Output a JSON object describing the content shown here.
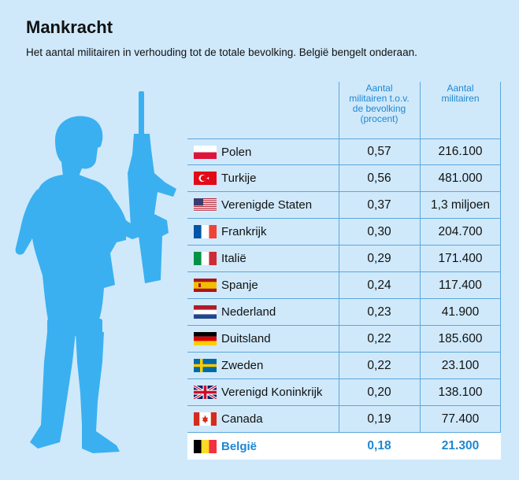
{
  "header": {
    "title": "Mankracht",
    "subtitle": "Het aantal militairen in verhouding tot de totale bevolking. België bengelt onderaan."
  },
  "chart_data": {
    "type": "table",
    "columns": [
      "",
      "Aantal militairen t.o.v. de bevolking (procent)",
      "Aantal militairen"
    ],
    "col_headers": {
      "percent_lines": [
        "Aantal",
        "militairen t.o.v.",
        "de bevolking",
        "(procent)"
      ],
      "count_lines": [
        "Aantal",
        "militairen"
      ]
    },
    "rows": [
      {
        "country": "Polen",
        "percent": "0,57",
        "count": "216.100",
        "flag": "poland-flag"
      },
      {
        "country": "Turkije",
        "percent": "0,56",
        "count": "481.000",
        "flag": "turkey-flag"
      },
      {
        "country": "Verenigde Staten",
        "percent": "0,37",
        "count": "1,3 miljoen",
        "flag": "usa-flag"
      },
      {
        "country": "Frankrijk",
        "percent": "0,30",
        "count": "204.700",
        "flag": "france-flag"
      },
      {
        "country": "Italië",
        "percent": "0,29",
        "count": "171.400",
        "flag": "italy-flag"
      },
      {
        "country": "Spanje",
        "percent": "0,24",
        "count": "117.400",
        "flag": "spain-flag"
      },
      {
        "country": "Nederland",
        "percent": "0,23",
        "count": "41.900",
        "flag": "netherlands-flag"
      },
      {
        "country": "Duitsland",
        "percent": "0,22",
        "count": "185.600",
        "flag": "germany-flag"
      },
      {
        "country": "Zweden",
        "percent": "0,22",
        "count": "23.100",
        "flag": "sweden-flag"
      },
      {
        "country": "Verenigd Koninkrijk",
        "percent": "0,20",
        "count": "138.100",
        "flag": "uk-flag"
      },
      {
        "country": "Canada",
        "percent": "0,19",
        "count": "77.400",
        "flag": "canada-flag"
      },
      {
        "country": "België",
        "percent": "0,18",
        "count": "21.300",
        "flag": "belgium-flag",
        "highlight": true
      }
    ]
  },
  "colors": {
    "background": "#cfe9fb",
    "accent": "#1e87d1",
    "silhouette": "#3ab0f0",
    "grid": "#5ba7dc"
  },
  "illustration": "soldier-silhouette-icon"
}
